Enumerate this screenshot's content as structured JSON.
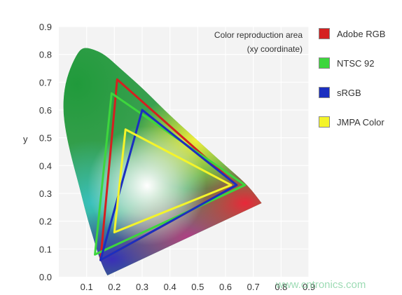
{
  "chart_data": {
    "type": "scatter",
    "title": "Color reproduction area",
    "subtitle": "(xy coordinate)",
    "xlabel": "",
    "ylabel": "y",
    "xlim": [
      0,
      0.9
    ],
    "ylim": [
      0,
      0.9
    ],
    "x_ticks": [
      "0.1",
      "0.2",
      "0.3",
      "0.4",
      "0.5",
      "0.6",
      "0.7",
      "0.8",
      "0.9"
    ],
    "y_ticks": [
      "0.0",
      "0.1",
      "0.2",
      "0.3",
      "0.4",
      "0.5",
      "0.6",
      "0.7",
      "0.8",
      "0.9"
    ],
    "grid": true,
    "legend_position": "right",
    "spectral_locus": [
      [
        0.175,
        0.005
      ],
      [
        0.166,
        0.02
      ],
      [
        0.145,
        0.07
      ],
      [
        0.124,
        0.14
      ],
      [
        0.1,
        0.22
      ],
      [
        0.075,
        0.32
      ],
      [
        0.045,
        0.43
      ],
      [
        0.025,
        0.52
      ],
      [
        0.015,
        0.6
      ],
      [
        0.02,
        0.68
      ],
      [
        0.04,
        0.75
      ],
      [
        0.07,
        0.81
      ],
      [
        0.09,
        0.825
      ],
      [
        0.12,
        0.82
      ],
      [
        0.165,
        0.8
      ],
      [
        0.22,
        0.75
      ],
      [
        0.3,
        0.68
      ],
      [
        0.4,
        0.58
      ],
      [
        0.5,
        0.49
      ],
      [
        0.6,
        0.4
      ],
      [
        0.68,
        0.33
      ],
      [
        0.73,
        0.265
      ]
    ],
    "series": [
      {
        "name": "Adobe RGB",
        "color": "#d42020",
        "points": [
          [
            0.64,
            0.33
          ],
          [
            0.21,
            0.71
          ],
          [
            0.15,
            0.06
          ]
        ]
      },
      {
        "name": "NTSC 92",
        "color": "#3dd63d",
        "points": [
          [
            0.67,
            0.33
          ],
          [
            0.19,
            0.66
          ],
          [
            0.13,
            0.08
          ]
        ]
      },
      {
        "name": "sRGB",
        "color": "#1b2fc0",
        "points": [
          [
            0.64,
            0.33
          ],
          [
            0.3,
            0.6
          ],
          [
            0.15,
            0.06
          ]
        ]
      },
      {
        "name": "JMPA Color",
        "color": "#f4f42a",
        "points": [
          [
            0.62,
            0.33
          ],
          [
            0.24,
            0.53
          ],
          [
            0.2,
            0.16
          ]
        ]
      }
    ]
  },
  "watermark": "www.cntronics.com"
}
